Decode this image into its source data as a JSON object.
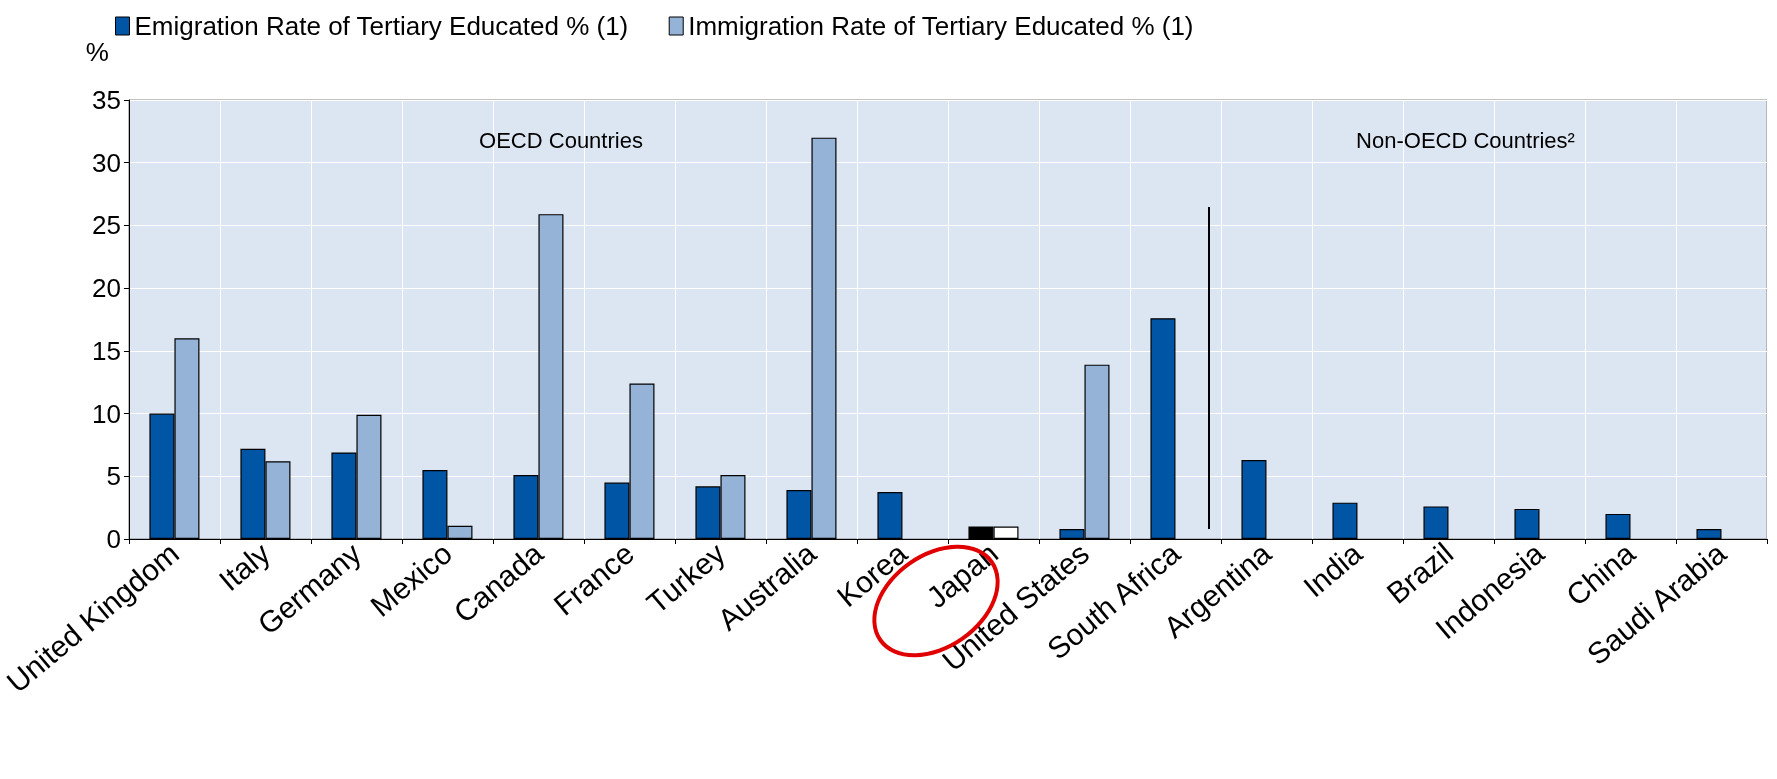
{
  "chart_data": {
    "type": "bar",
    "ylabel": "%",
    "categories": [
      "United Kingdom",
      "Italy",
      "Germany",
      "Mexico",
      "Canada",
      "France",
      "Turkey",
      "Australia",
      "Korea",
      "Japan",
      "United States",
      "South Africa",
      "Argentina",
      "India",
      "Brazil",
      "Indonesia",
      "China",
      "Saudi Arabia"
    ],
    "series": [
      {
        "name": "Emigration Rate of Tertiary Educated % (1)",
        "color": "#0055a5",
        "colors": [
          "#0055a5",
          "#0055a5",
          "#0055a5",
          "#0055a5",
          "#0055a5",
          "#0055a5",
          "#0055a5",
          "#0055a5",
          "#0055a5",
          "#000000",
          "#0055a5",
          "#0055a5",
          "#0055a5",
          "#0055a5",
          "#0055a5",
          "#0055a5",
          "#0055a5",
          "#0055a5"
        ],
        "values": [
          10,
          7.2,
          6.9,
          5.5,
          5.1,
          4.5,
          4.2,
          3.9,
          3.75,
          1,
          0.8,
          17.6,
          6.3,
          2.9,
          2.6,
          2.4,
          2,
          0.8
        ]
      },
      {
        "name": "Immigration Rate of Tertiary Educated % (1)",
        "color": "#95b3d7",
        "colors": [
          "#95b3d7",
          "#95b3d7",
          "#95b3d7",
          "#95b3d7",
          "#95b3d7",
          "#95b3d7",
          "#95b3d7",
          "#95b3d7",
          "#95b3d7",
          "#ffffff",
          "#95b3d7",
          "#95b3d7",
          "#95b3d7",
          "#95b3d7",
          "#95b3d7",
          "#95b3d7",
          "#95b3d7",
          "#95b3d7"
        ],
        "values": [
          16,
          6.2,
          9.9,
          1.05,
          25.9,
          12.4,
          5.1,
          32,
          null,
          1,
          13.9,
          null,
          null,
          null,
          null,
          null,
          null,
          null
        ]
      }
    ],
    "ylim": [
      0,
      35
    ],
    "yticks": [
      0,
      5,
      10,
      15,
      20,
      25,
      30,
      35
    ],
    "grid": true,
    "legend": "top left",
    "annotations": [
      "OECD Countries",
      "Non-OECD Countries²"
    ]
  }
}
